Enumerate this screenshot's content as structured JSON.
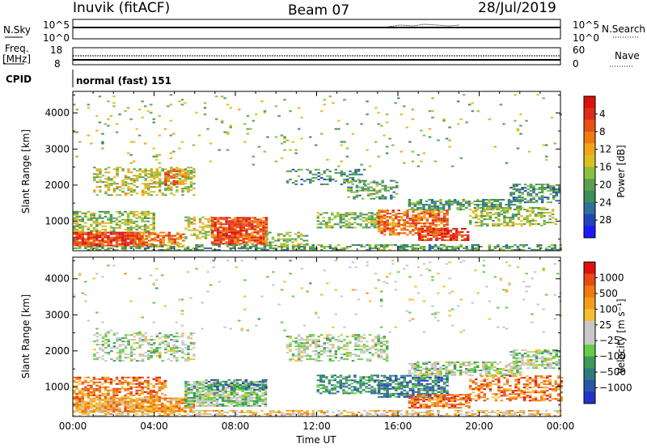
{
  "header": {
    "site": "Inuvik (fitACF)",
    "beam": "Beam 07",
    "date": "28/Jul/2019"
  },
  "status": {
    "nsky_label": "N.Sky",
    "nsky_ticks": [
      "10^5",
      "10^0"
    ],
    "nsearch_label": "N.Search",
    "nsearch_ticks": [
      "10^5",
      "10^0"
    ],
    "freq_label": "Freq.",
    "freq_unit": "[MHz]",
    "freq_ticks": [
      "18",
      "8"
    ],
    "nave_label": "Nave",
    "nave_ticks": [
      "60",
      "0"
    ],
    "cpid_label": "CPID",
    "cpid_value": "normal (fast) 151"
  },
  "chart_data": [
    {
      "type": "heatmap",
      "name": "power",
      "xlabel": "",
      "ylabel": "Slant Range [km]",
      "ylim": [
        180,
        4600
      ],
      "yticks": [
        1000,
        2000,
        3000,
        4000
      ],
      "y_tick_labels": [
        "1000",
        "2000",
        "3000",
        "4000"
      ],
      "colorbar": {
        "label": "Power [dB]",
        "ticks": [
          "4",
          "8",
          "12",
          "16",
          "20",
          "24",
          "28"
        ],
        "colors": [
          "#1a1aff",
          "#2244bb",
          "#2e6f9e",
          "#3e8e5a",
          "#5aa050",
          "#8cbf3c",
          "#d9c21e",
          "#f2a51a",
          "#f07a10",
          "#e85015",
          "#e02a1a",
          "#dd0f0f"
        ]
      },
      "regions": [
        {
          "t0": 0.0,
          "t1": 24.0,
          "r0": 180,
          "r1": 320,
          "level": 0.35,
          "density": 0.55
        },
        {
          "t0": 0.0,
          "t1": 3.5,
          "r0": 300,
          "r1": 700,
          "level": 0.85,
          "density": 0.9
        },
        {
          "t0": 0.0,
          "t1": 4.0,
          "r0": 700,
          "r1": 1250,
          "level": 0.45,
          "density": 0.55
        },
        {
          "t0": 3.0,
          "t1": 5.5,
          "r0": 300,
          "r1": 700,
          "level": 0.7,
          "density": 0.7
        },
        {
          "t0": 5.5,
          "t1": 7.0,
          "r0": 500,
          "r1": 1100,
          "level": 0.5,
          "density": 0.5
        },
        {
          "t0": 6.8,
          "t1": 9.5,
          "r0": 350,
          "r1": 1100,
          "level": 0.8,
          "density": 0.9
        },
        {
          "t0": 1.0,
          "t1": 6.0,
          "r0": 1700,
          "r1": 2500,
          "level": 0.5,
          "density": 0.45
        },
        {
          "t0": 4.5,
          "t1": 5.5,
          "r0": 2000,
          "r1": 2450,
          "level": 0.7,
          "density": 0.6
        },
        {
          "t0": 9.5,
          "t1": 11.5,
          "r0": 300,
          "r1": 700,
          "level": 0.45,
          "density": 0.35
        },
        {
          "t0": 10.5,
          "t1": 14.5,
          "r0": 2000,
          "r1": 2450,
          "level": 0.3,
          "density": 0.35
        },
        {
          "t0": 13.5,
          "t1": 16.0,
          "r0": 1600,
          "r1": 2100,
          "level": 0.35,
          "density": 0.45
        },
        {
          "t0": 12.0,
          "t1": 15.0,
          "r0": 800,
          "r1": 1250,
          "level": 0.4,
          "density": 0.55
        },
        {
          "t0": 15.0,
          "t1": 18.5,
          "r0": 600,
          "r1": 1300,
          "level": 0.75,
          "density": 0.75
        },
        {
          "t0": 17.0,
          "t1": 19.5,
          "r0": 450,
          "r1": 800,
          "level": 0.85,
          "density": 0.7
        },
        {
          "t0": 16.5,
          "t1": 22.0,
          "r0": 1300,
          "r1": 1600,
          "level": 0.35,
          "density": 0.6
        },
        {
          "t0": 19.5,
          "t1": 23.8,
          "r0": 850,
          "r1": 1350,
          "level": 0.45,
          "density": 0.5
        },
        {
          "t0": 21.5,
          "t1": 24.0,
          "r0": 1500,
          "r1": 2000,
          "level": 0.3,
          "density": 0.6
        },
        {
          "t0": 0.0,
          "t1": 24.0,
          "r0": 2500,
          "r1": 4500,
          "level": 0.45,
          "density": 0.025
        }
      ]
    },
    {
      "type": "heatmap",
      "name": "velocity",
      "xlabel": "Time UT",
      "ylabel": "Slant Range [km]",
      "ylim": [
        180,
        4600
      ],
      "yticks": [
        1000,
        2000,
        3000,
        4000
      ],
      "y_tick_labels": [
        "1000",
        "2000",
        "3000",
        "4000"
      ],
      "x_tick_labels": [
        "00:00",
        "04:00",
        "08:00",
        "12:00",
        "16:00",
        "20:00",
        "00:00"
      ],
      "colorbar": {
        "label": "Velocity [m s⁻¹]",
        "ticks": [
          "1000",
          "500",
          "100",
          "25",
          "−25",
          "−100",
          "−500",
          "−1000"
        ],
        "colors": [
          "#2233cc",
          "#2a55aa",
          "#2f7a7a",
          "#3b9a5a",
          "#66cc44",
          "#c8c8c8",
          "#c8c8c8",
          "#f5c030",
          "#f29c1a",
          "#ee7a10",
          "#e84a14",
          "#e01010"
        ]
      },
      "regions": [
        {
          "t0": 0.0,
          "t1": 24.0,
          "r0": 180,
          "r1": 320,
          "level": 0.6,
          "density": 0.55
        },
        {
          "t0": 0.0,
          "t1": 6.0,
          "r0": 300,
          "r1": 700,
          "level": 0.72,
          "density": 0.85
        },
        {
          "t0": 0.0,
          "t1": 4.5,
          "r0": 700,
          "r1": 1250,
          "level": 0.78,
          "density": 0.6
        },
        {
          "t0": 5.5,
          "t1": 9.5,
          "r0": 450,
          "r1": 1150,
          "level": 0.42,
          "density": 0.8
        },
        {
          "t0": 6.5,
          "t1": 9.5,
          "r0": 900,
          "r1": 1200,
          "level": 0.2,
          "density": 0.45
        },
        {
          "t0": 1.0,
          "t1": 6.0,
          "r0": 1700,
          "r1": 2500,
          "level": 0.45,
          "density": 0.45
        },
        {
          "t0": 10.5,
          "t1": 15.5,
          "r0": 1700,
          "r1": 2450,
          "level": 0.45,
          "density": 0.45
        },
        {
          "t0": 12.0,
          "t1": 15.0,
          "r0": 800,
          "r1": 1300,
          "level": 0.25,
          "density": 0.55
        },
        {
          "t0": 15.0,
          "t1": 18.5,
          "r0": 700,
          "r1": 1300,
          "level": 0.22,
          "density": 0.7
        },
        {
          "t0": 16.5,
          "t1": 19.5,
          "r0": 400,
          "r1": 800,
          "level": 0.8,
          "density": 0.7
        },
        {
          "t0": 16.5,
          "t1": 22.0,
          "r0": 1300,
          "r1": 1700,
          "level": 0.45,
          "density": 0.6
        },
        {
          "t0": 19.5,
          "t1": 24.0,
          "r0": 600,
          "r1": 1300,
          "level": 0.78,
          "density": 0.5
        },
        {
          "t0": 21.5,
          "t1": 24.0,
          "r0": 1500,
          "r1": 2000,
          "level": 0.45,
          "density": 0.6
        },
        {
          "t0": 0.0,
          "t1": 24.0,
          "r0": 2500,
          "r1": 4500,
          "level": 0.5,
          "density": 0.025
        }
      ]
    }
  ]
}
